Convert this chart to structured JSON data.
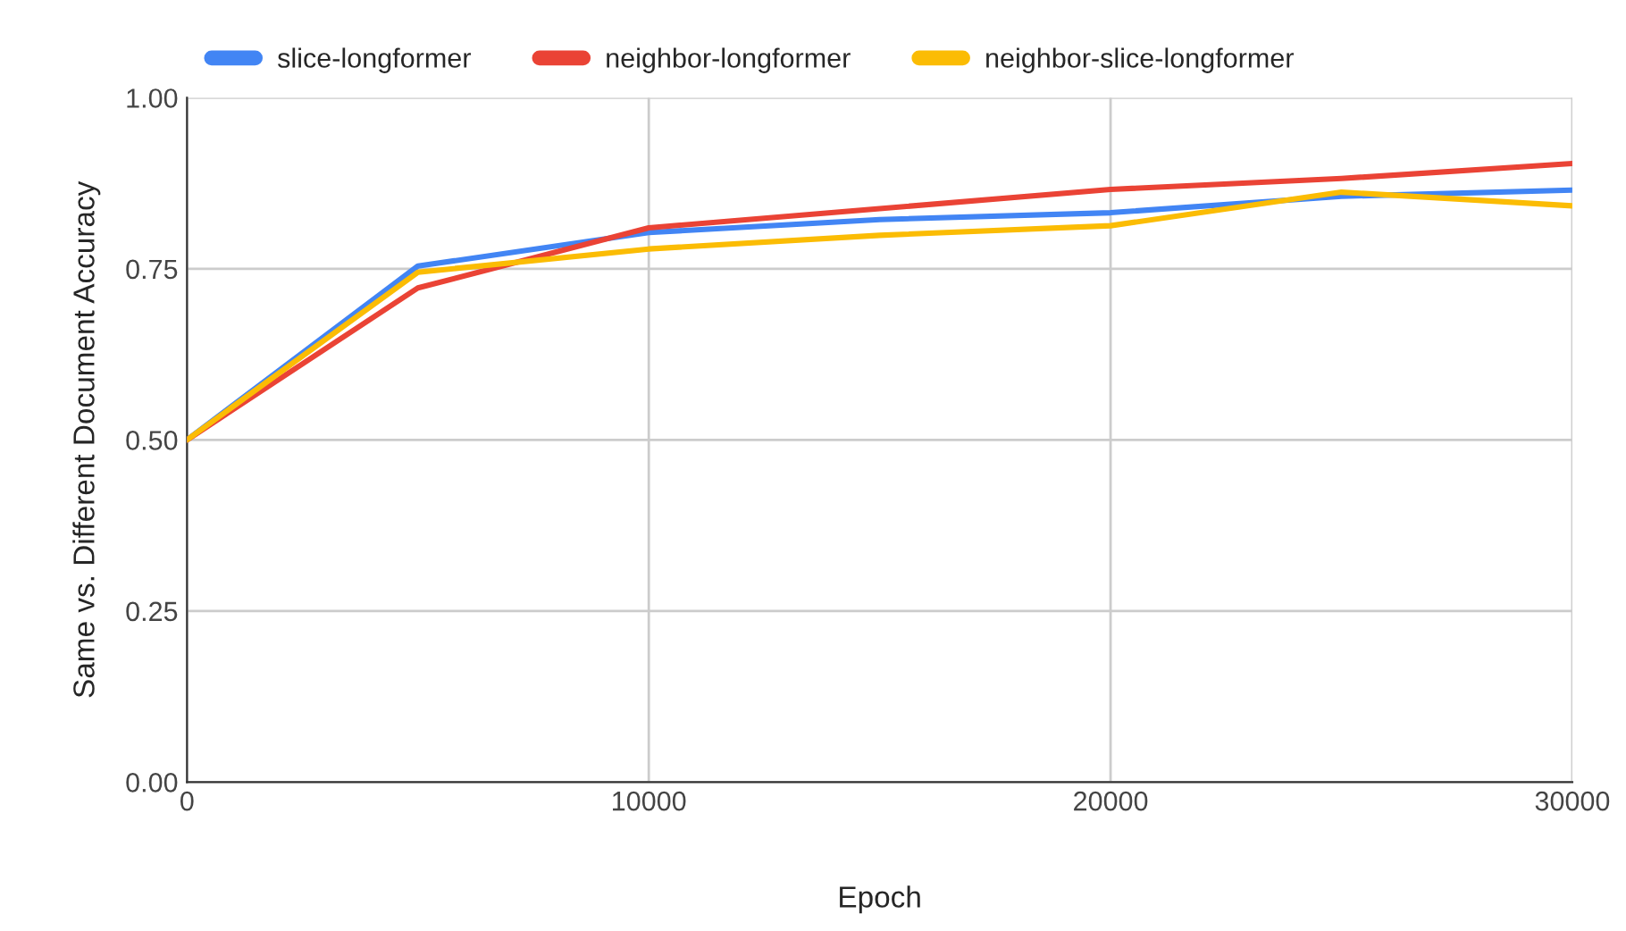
{
  "chart_data": {
    "type": "line",
    "xlabel": "Epoch",
    "ylabel": "Same vs. Different Document Accuracy",
    "x": [
      0,
      5000,
      10000,
      15000,
      20000,
      25000,
      30000
    ],
    "series": [
      {
        "name": "slice-longformer",
        "color": "#4285f4",
        "values": [
          0.5,
          0.754,
          0.803,
          0.822,
          0.832,
          0.856,
          0.865
        ]
      },
      {
        "name": "neighbor-longformer",
        "color": "#ea4335",
        "values": [
          0.5,
          0.722,
          0.81,
          0.838,
          0.866,
          0.882,
          0.904
        ]
      },
      {
        "name": "neighbor-slice-longformer",
        "color": "#fbbc04",
        "values": [
          0.5,
          0.745,
          0.779,
          0.799,
          0.813,
          0.862,
          0.842
        ]
      }
    ],
    "xlim": [
      0,
      30000
    ],
    "xticks": [
      0,
      10000,
      20000,
      30000
    ],
    "ylim": [
      0,
      1
    ],
    "yticks": [
      {
        "value": 0,
        "label": "0.00"
      },
      {
        "value": 0.25,
        "label": "0.25"
      },
      {
        "value": 0.5,
        "label": "0.50"
      },
      {
        "value": 0.75,
        "label": "0.75"
      },
      {
        "value": 1,
        "label": "1.00"
      }
    ],
    "grid": true,
    "legend": "top left",
    "marker": "none",
    "line_style": "solid"
  }
}
